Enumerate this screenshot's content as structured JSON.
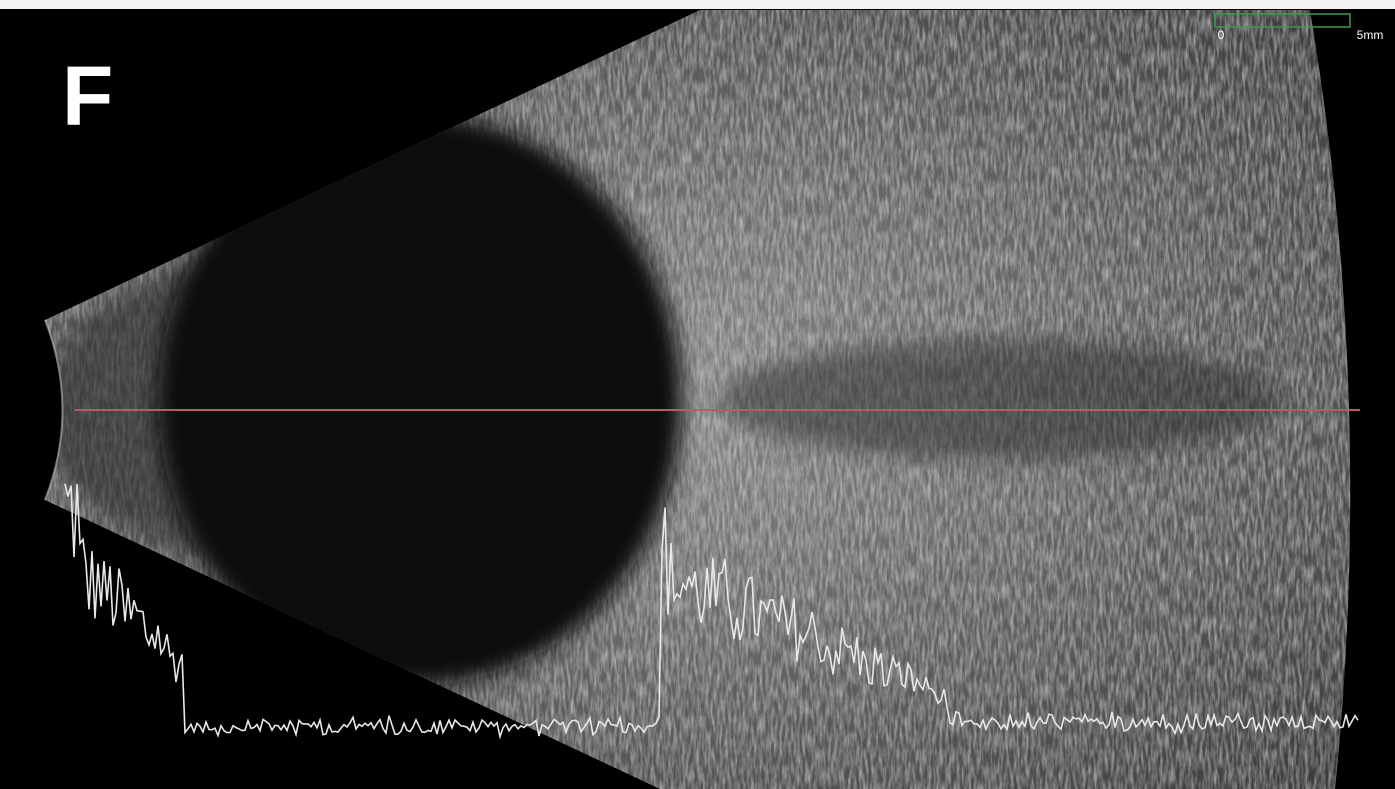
{
  "panel_label": "F",
  "scale_bar": {
    "start_label": "0",
    "end_label": "5mm"
  }
}
